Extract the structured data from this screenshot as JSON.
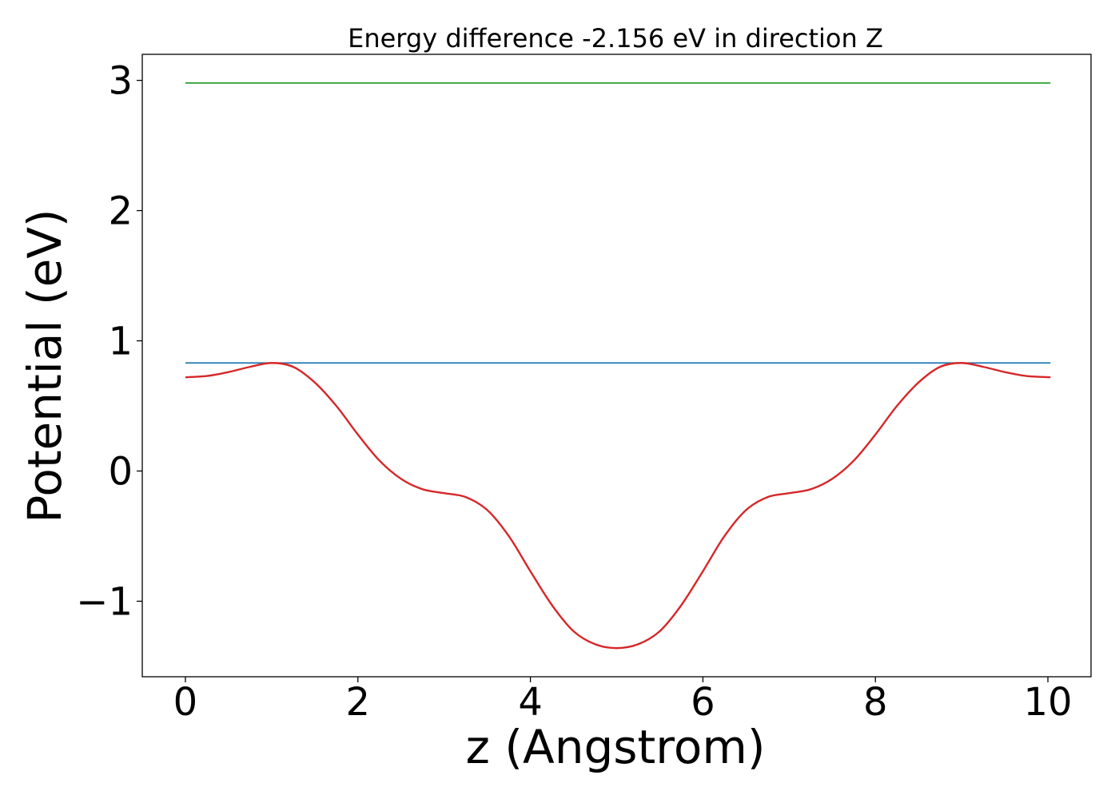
{
  "chart_data": {
    "type": "line",
    "title": "Energy difference -2.156 eV in direction Z",
    "xlabel": "z (Angstrom)",
    "ylabel": "Potential (eV)",
    "xlim": [
      -0.5,
      10.5
    ],
    "ylim": [
      -1.58,
      3.2
    ],
    "x_ticks": [
      0,
      2,
      4,
      6,
      8,
      10
    ],
    "x_tick_labels": [
      "0",
      "2",
      "4",
      "6",
      "8",
      "10"
    ],
    "y_ticks": [
      -1,
      0,
      1,
      2,
      3
    ],
    "y_tick_labels": [
      "−1",
      "0",
      "1",
      "2",
      "3"
    ],
    "grid": false,
    "series": [
      {
        "color": "#2ca02c",
        "x": [
          0,
          10.03
        ],
        "y": [
          2.98,
          2.98
        ]
      },
      {
        "color": "#1f77b4",
        "x": [
          0,
          10.03
        ],
        "y": [
          0.83,
          0.83
        ]
      },
      {
        "color": "#d62728",
        "x": [
          0,
          0.25,
          0.5,
          0.75,
          1.0,
          1.25,
          1.5,
          1.75,
          2.0,
          2.25,
          2.5,
          2.75,
          3.0,
          3.25,
          3.5,
          3.75,
          4.0,
          4.25,
          4.5,
          4.75,
          5.0,
          5.25,
          5.5,
          5.75,
          6.0,
          6.25,
          6.5,
          6.75,
          7.0,
          7.25,
          7.5,
          7.75,
          8.0,
          8.25,
          8.5,
          8.75,
          9.0,
          9.25,
          9.5,
          9.75,
          10.03
        ],
        "y": [
          0.72,
          0.73,
          0.76,
          0.8,
          0.83,
          0.8,
          0.68,
          0.5,
          0.28,
          0.08,
          -0.06,
          -0.14,
          -0.17,
          -0.2,
          -0.3,
          -0.5,
          -0.77,
          -1.03,
          -1.23,
          -1.33,
          -1.36,
          -1.33,
          -1.23,
          -1.03,
          -0.77,
          -0.5,
          -0.3,
          -0.2,
          -0.17,
          -0.14,
          -0.06,
          0.08,
          0.28,
          0.5,
          0.68,
          0.8,
          0.83,
          0.8,
          0.76,
          0.73,
          0.72
        ]
      }
    ]
  }
}
